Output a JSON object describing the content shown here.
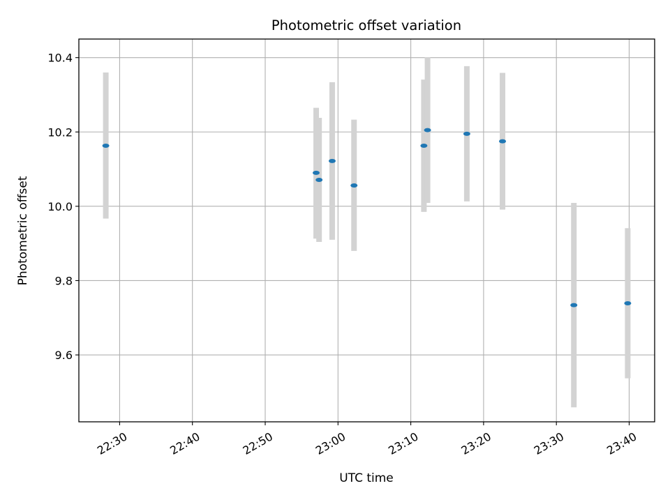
{
  "chart_data": {
    "type": "scatter",
    "title": "Photometric offset variation",
    "xlabel": "UTC time",
    "ylabel": "Photometric offset",
    "x_ticks": [
      "22:30",
      "22:40",
      "22:50",
      "23:00",
      "23:10",
      "23:20",
      "23:30",
      "23:40"
    ],
    "y_ticks": [
      "9.6",
      "9.8",
      "10.0",
      "10.2",
      "10.4"
    ],
    "xlim": [
      "22:24.4",
      "23:43.5"
    ],
    "ylim": [
      9.42,
      10.45
    ],
    "grid": true,
    "point_color": "#1f77b4",
    "errorbar_color": "#d3d3d3",
    "points": [
      {
        "time": "22:28.1",
        "value": 10.163,
        "err_low": 9.967,
        "err_high": 10.36
      },
      {
        "time": "22:57.0",
        "value": 10.09,
        "err_low": 9.913,
        "err_high": 10.265
      },
      {
        "time": "22:57.4",
        "value": 10.071,
        "err_low": 9.904,
        "err_high": 10.238
      },
      {
        "time": "22:59.2",
        "value": 10.122,
        "err_low": 9.91,
        "err_high": 10.334
      },
      {
        "time": "23:02.2",
        "value": 10.056,
        "err_low": 9.88,
        "err_high": 10.233
      },
      {
        "time": "23:11.8",
        "value": 10.163,
        "err_low": 9.985,
        "err_high": 10.341
      },
      {
        "time": "23:12.3",
        "value": 10.205,
        "err_low": 10.009,
        "err_high": 10.401
      },
      {
        "time": "23:17.7",
        "value": 10.195,
        "err_low": 10.013,
        "err_high": 10.377
      },
      {
        "time": "23:22.6",
        "value": 10.175,
        "err_low": 9.991,
        "err_high": 10.359
      },
      {
        "time": "23:32.4",
        "value": 9.734,
        "err_low": 9.459,
        "err_high": 10.009
      },
      {
        "time": "23:39.8",
        "value": 9.739,
        "err_low": 9.537,
        "err_high": 9.941
      }
    ]
  }
}
